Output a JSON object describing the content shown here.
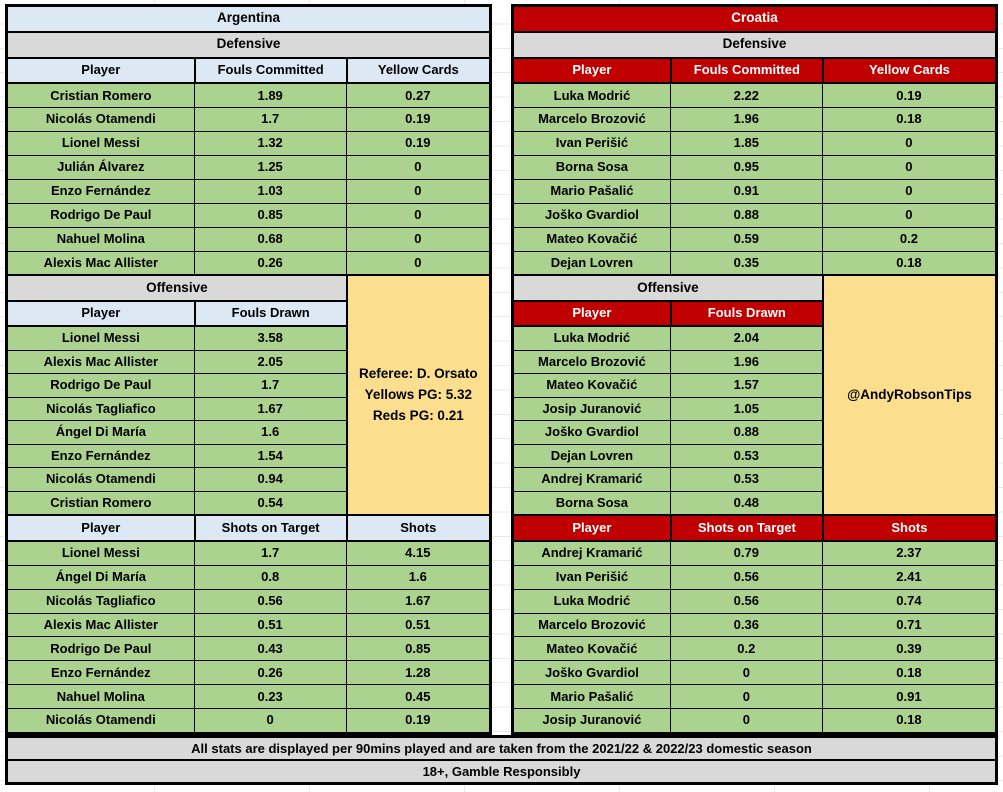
{
  "chart_data": {
    "type": "table",
    "teams": [
      {
        "name": "Argentina",
        "defensive": {
          "label": "Defensive",
          "columns": [
            "Player",
            "Fouls Committed",
            "Yellow Cards"
          ],
          "rows": [
            {
              "player": "Cristian Romero",
              "v1": "1.89",
              "v2": "0.27"
            },
            {
              "player": "Nicolás Otamendi",
              "v1": "1.7",
              "v2": "0.19"
            },
            {
              "player": "Lionel Messi",
              "v1": "1.32",
              "v2": "0.19"
            },
            {
              "player": "Julián Álvarez",
              "v1": "1.25",
              "v2": "0"
            },
            {
              "player": "Enzo Fernández",
              "v1": "1.03",
              "v2": "0"
            },
            {
              "player": "Rodrigo De Paul",
              "v1": "0.85",
              "v2": "0"
            },
            {
              "player": "Nahuel Molina",
              "v1": "0.68",
              "v2": "0"
            },
            {
              "player": "Alexis Mac Allister",
              "v1": "0.26",
              "v2": "0"
            }
          ]
        },
        "offensive": {
          "label": "Offensive",
          "columns": [
            "Player",
            "Fouls Drawn"
          ],
          "rows": [
            {
              "player": "Lionel Messi",
              "v1": "3.58"
            },
            {
              "player": "Alexis Mac Allister",
              "v1": "2.05"
            },
            {
              "player": "Rodrigo De Paul",
              "v1": "1.7"
            },
            {
              "player": "Nicolás Tagliafico",
              "v1": "1.67"
            },
            {
              "player": "Ángel Di María",
              "v1": "1.6"
            },
            {
              "player": "Enzo Fernández",
              "v1": "1.54"
            },
            {
              "player": "Nicolás Otamendi",
              "v1": "0.94"
            },
            {
              "player": "Cristian Romero",
              "v1": "0.54"
            }
          ]
        },
        "shooting": {
          "columns": [
            "Player",
            "Shots on Target",
            "Shots"
          ],
          "rows": [
            {
              "player": "Lionel Messi",
              "v1": "1.7",
              "v2": "4.15"
            },
            {
              "player": "Ángel Di María",
              "v1": "0.8",
              "v2": "1.6"
            },
            {
              "player": "Nicolás Tagliafico",
              "v1": "0.56",
              "v2": "1.67"
            },
            {
              "player": "Alexis Mac Allister",
              "v1": "0.51",
              "v2": "0.51"
            },
            {
              "player": "Rodrigo De Paul",
              "v1": "0.43",
              "v2": "0.85"
            },
            {
              "player": "Enzo Fernández",
              "v1": "0.26",
              "v2": "1.28"
            },
            {
              "player": "Nahuel Molina",
              "v1": "0.23",
              "v2": "0.45"
            },
            {
              "player": "Nicolás Otamendi",
              "v1": "0",
              "v2": "0.19"
            }
          ]
        },
        "note_lines": [
          "Referee: D. Orsato",
          "Yellows PG: 5.32",
          "Reds PG: 0.21"
        ]
      },
      {
        "name": "Croatia",
        "defensive": {
          "label": "Defensive",
          "columns": [
            "Player",
            "Fouls Committed",
            "Yellow Cards"
          ],
          "rows": [
            {
              "player": "Luka Modrić",
              "v1": "2.22",
              "v2": "0.19"
            },
            {
              "player": "Marcelo Brozović",
              "v1": "1.96",
              "v2": "0.18"
            },
            {
              "player": "Ivan Perišić",
              "v1": "1.85",
              "v2": "0"
            },
            {
              "player": "Borna Sosa",
              "v1": "0.95",
              "v2": "0"
            },
            {
              "player": "Mario Pašalić",
              "v1": "0.91",
              "v2": "0"
            },
            {
              "player": "Joško Gvardiol",
              "v1": "0.88",
              "v2": "0"
            },
            {
              "player": "Mateo Kovačić",
              "v1": "0.59",
              "v2": "0.2"
            },
            {
              "player": "Dejan Lovren",
              "v1": "0.35",
              "v2": "0.18"
            }
          ]
        },
        "offensive": {
          "label": "Offensive",
          "columns": [
            "Player",
            "Fouls Drawn"
          ],
          "rows": [
            {
              "player": "Luka Modrić",
              "v1": "2.04"
            },
            {
              "player": "Marcelo Brozović",
              "v1": "1.96"
            },
            {
              "player": "Mateo Kovačić",
              "v1": "1.57"
            },
            {
              "player": "Josip Juranović",
              "v1": "1.05"
            },
            {
              "player": "Joško Gvardiol",
              "v1": "0.88"
            },
            {
              "player": "Dejan Lovren",
              "v1": "0.53"
            },
            {
              "player": "Andrej Kramarić",
              "v1": "0.53"
            },
            {
              "player": "Borna Sosa",
              "v1": "0.48"
            }
          ]
        },
        "shooting": {
          "columns": [
            "Player",
            "Shots on Target",
            "Shots"
          ],
          "rows": [
            {
              "player": "Andrej Kramarić",
              "v1": "0.79",
              "v2": "2.37"
            },
            {
              "player": "Ivan Perišić",
              "v1": "0.56",
              "v2": "2.41"
            },
            {
              "player": "Luka Modrić",
              "v1": "0.56",
              "v2": "0.74"
            },
            {
              "player": "Marcelo Brozović",
              "v1": "0.36",
              "v2": "0.71"
            },
            {
              "player": "Mateo Kovačić",
              "v1": "0.2",
              "v2": "0.39"
            },
            {
              "player": "Joško Gvardiol",
              "v1": "0",
              "v2": "0.18"
            },
            {
              "player": "Mario Pašalić",
              "v1": "0",
              "v2": "0.91"
            },
            {
              "player": "Josip Juranović",
              "v1": "0",
              "v2": "0.18"
            }
          ]
        },
        "note_lines": [
          "@AndyRobsonTips"
        ]
      }
    ],
    "footers": {
      "stats_note": "All stats are displayed per 90mins played and are taken from the 2021/22 & 2022/23 domestic season",
      "responsible_note": "18+, Gamble Responsibly"
    }
  },
  "colors": {
    "argentina_header_bg": "#DCE9F5",
    "argentina_header_text": "#000000",
    "croatia_header_bg": "#C00000",
    "croatia_header_text": "#FFFFFF",
    "section_header_bg": "#D9D9D9",
    "data_row_bg": "#ABD28F",
    "note_box_bg": "#FBDF8E",
    "border": "#000000",
    "background": "#FFFFFF"
  }
}
